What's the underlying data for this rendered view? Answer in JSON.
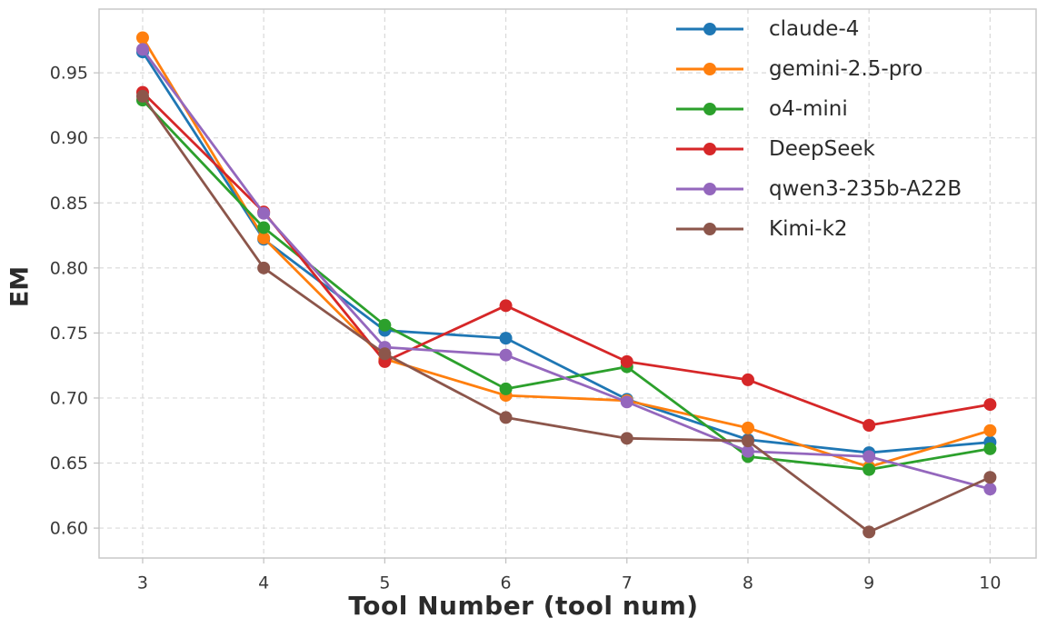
{
  "chart_data": {
    "type": "line",
    "title": "",
    "xlabel": "Tool Number (tool num)",
    "ylabel": "EM",
    "x": [
      3,
      4,
      5,
      6,
      7,
      8,
      9,
      10
    ],
    "xtick_labels": [
      "3",
      "4",
      "5",
      "6",
      "7",
      "8",
      "9",
      "10"
    ],
    "yticks": [
      0.6,
      0.65,
      0.7,
      0.75,
      0.8,
      0.85,
      0.9,
      0.95
    ],
    "ytick_labels": [
      "0.60",
      "0.65",
      "0.70",
      "0.75",
      "0.80",
      "0.85",
      "0.90",
      "0.95"
    ],
    "xlim": [
      2.64,
      10.38
    ],
    "ylim": [
      0.577,
      0.999
    ],
    "grid": true,
    "grid_style": "dashed",
    "legend_position": "upper right",
    "series": [
      {
        "name": "claude-4",
        "color": "#1f77b4",
        "values": [
          0.966,
          0.822,
          0.752,
          0.746,
          0.699,
          0.668,
          0.658,
          0.666
        ]
      },
      {
        "name": "gemini-2.5-pro",
        "color": "#ff7f0e",
        "values": [
          0.977,
          0.823,
          0.73,
          0.702,
          0.698,
          0.677,
          0.647,
          0.675
        ]
      },
      {
        "name": "o4-mini",
        "color": "#2ca02c",
        "values": [
          0.929,
          0.831,
          0.756,
          0.707,
          0.724,
          0.655,
          0.645,
          0.661
        ]
      },
      {
        "name": "DeepSeek",
        "color": "#d62728",
        "values": [
          0.935,
          0.843,
          0.728,
          0.771,
          0.728,
          0.714,
          0.679,
          0.695
        ]
      },
      {
        "name": "qwen3-235b-A22B",
        "color": "#9467bd",
        "values": [
          0.968,
          0.842,
          0.739,
          0.733,
          0.697,
          0.659,
          0.655,
          0.63
        ]
      },
      {
        "name": "Kimi-k2",
        "color": "#8c564b",
        "values": [
          0.932,
          0.8,
          0.734,
          0.685,
          0.669,
          0.667,
          0.597,
          0.639
        ]
      }
    ],
    "colors": {
      "grid": "#d9d9d9",
      "spine": "#c8c8c8",
      "tick": "#c0c0c0",
      "tick_text": "#3a3a3a",
      "label_text": "#2b2b2b",
      "background": "#ffffff"
    }
  }
}
